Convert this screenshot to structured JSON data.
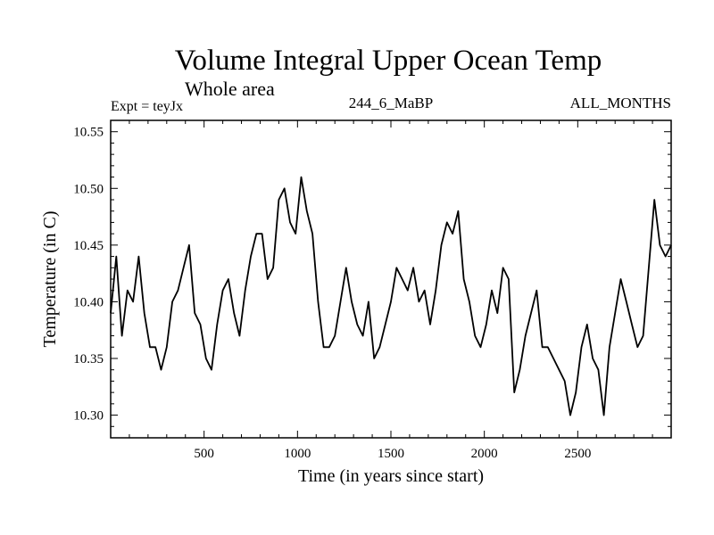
{
  "header": {
    "title": "Volume Integral Upper Ocean Temp",
    "subtitle": "Whole area",
    "expt_label": "Expt = teyJx",
    "expt_id": "244_6_MaBP",
    "months": "ALL_MONTHS"
  },
  "chart_data": {
    "type": "line",
    "title": "Volume Integral Upper Ocean Temp",
    "subtitle": "Whole area",
    "xlabel": "Time (in years since start)",
    "ylabel": "Temperature (in C)",
    "xlim": [
      0,
      3000
    ],
    "ylim": [
      10.28,
      10.56
    ],
    "x_ticks": [
      500,
      1000,
      1500,
      2000,
      2500
    ],
    "x_tick_labels": [
      "500",
      "1000",
      "1500",
      "2000",
      "2500"
    ],
    "y_ticks": [
      10.3,
      10.35,
      10.4,
      10.45,
      10.5,
      10.55
    ],
    "y_tick_labels": [
      "10.30",
      "10.35",
      "10.40",
      "10.45",
      "10.50",
      "10.55"
    ],
    "grid": false,
    "series": [
      {
        "name": "Volume Integral Upper Ocean Temp",
        "x": [
          0,
          30,
          60,
          90,
          120,
          150,
          180,
          210,
          240,
          270,
          300,
          330,
          360,
          390,
          420,
          450,
          480,
          510,
          540,
          570,
          600,
          630,
          660,
          690,
          720,
          750,
          780,
          810,
          840,
          870,
          900,
          930,
          960,
          990,
          1020,
          1050,
          1080,
          1110,
          1140,
          1170,
          1200,
          1230,
          1260,
          1290,
          1320,
          1350,
          1380,
          1410,
          1440,
          1470,
          1500,
          1530,
          1560,
          1590,
          1620,
          1650,
          1680,
          1710,
          1740,
          1770,
          1800,
          1830,
          1860,
          1890,
          1920,
          1950,
          1980,
          2010,
          2040,
          2070,
          2100,
          2130,
          2160,
          2190,
          2220,
          2250,
          2280,
          2310,
          2340,
          2370,
          2400,
          2430,
          2460,
          2490,
          2520,
          2550,
          2580,
          2610,
          2640,
          2670,
          2700,
          2730,
          2760,
          2790,
          2820,
          2850,
          2880,
          2910,
          2940,
          2970,
          3000
        ],
        "values": [
          10.39,
          10.44,
          10.37,
          10.41,
          10.4,
          10.44,
          10.39,
          10.36,
          10.36,
          10.34,
          10.36,
          10.4,
          10.41,
          10.43,
          10.45,
          10.39,
          10.38,
          10.35,
          10.34,
          10.38,
          10.41,
          10.42,
          10.39,
          10.37,
          10.41,
          10.44,
          10.46,
          10.46,
          10.42,
          10.43,
          10.49,
          10.5,
          10.47,
          10.46,
          10.51,
          10.48,
          10.46,
          10.4,
          10.36,
          10.36,
          10.37,
          10.4,
          10.43,
          10.4,
          10.38,
          10.37,
          10.4,
          10.35,
          10.36,
          10.38,
          10.4,
          10.43,
          10.42,
          10.41,
          10.43,
          10.4,
          10.41,
          10.38,
          10.41,
          10.45,
          10.47,
          10.46,
          10.48,
          10.42,
          10.4,
          10.37,
          10.36,
          10.38,
          10.41,
          10.39,
          10.43,
          10.42,
          10.32,
          10.34,
          10.37,
          10.39,
          10.41,
          10.36,
          10.36,
          10.35,
          10.34,
          10.33,
          10.3,
          10.32,
          10.36,
          10.38,
          10.35,
          10.34,
          10.3,
          10.36,
          10.39,
          10.42,
          10.4,
          10.38,
          10.36,
          10.37,
          10.43,
          10.49,
          10.45,
          10.44,
          10.45
        ]
      }
    ]
  }
}
